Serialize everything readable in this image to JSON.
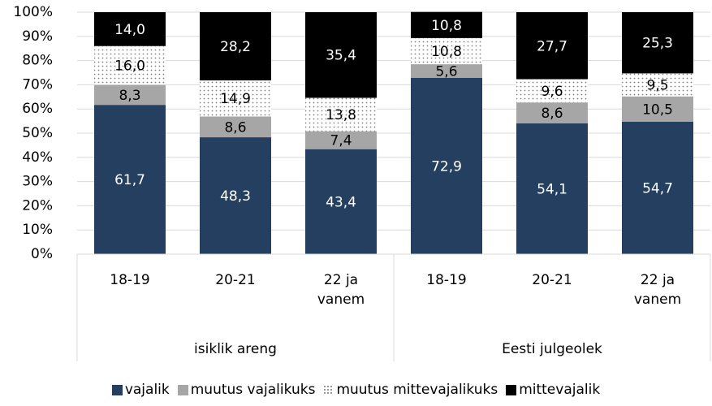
{
  "chart_data": {
    "type": "stacked_bar",
    "categories": [
      "18-19",
      "20-21",
      "22 ja vanem",
      "18-19",
      "20-21",
      "22 ja vanem"
    ],
    "groups": [
      {
        "name": "isiklik areng",
        "size": 3
      },
      {
        "name": "Eesti julgeolek",
        "size": 3
      }
    ],
    "series": [
      {
        "name": "vajalik",
        "color": "#243f60",
        "values": [
          61.7,
          48.3,
          43.4,
          72.9,
          54.1,
          54.7
        ],
        "value_labels": [
          "61,7",
          "48,3",
          "43,4",
          "72,9",
          "54,1",
          "54,7"
        ]
      },
      {
        "name": "muutus vajalikuks",
        "color": "#a6a6a6",
        "values": [
          8.3,
          8.6,
          7.4,
          5.6,
          8.6,
          10.5
        ],
        "value_labels": [
          "8,3",
          "8,6",
          "7,4",
          "5,6",
          "8,6",
          "10,5"
        ]
      },
      {
        "name": "muutus mittevajalikuks",
        "color": "#7f7f7f",
        "pattern": "dotted",
        "values": [
          16.0,
          14.9,
          13.8,
          10.8,
          9.6,
          9.5
        ],
        "value_labels": [
          "16,0",
          "14,9",
          "13,8",
          "10,8",
          "9,6",
          "9,5"
        ]
      },
      {
        "name": "mittevajalik",
        "color": "#000000",
        "values": [
          14.0,
          28.2,
          35.4,
          10.8,
          27.7,
          25.3
        ],
        "value_labels": [
          "14,0",
          "28,2",
          "35,4",
          "10,8",
          "27,7",
          "25,3"
        ]
      }
    ],
    "ylim": [
      0,
      100
    ],
    "yticks": [
      {
        "value": 0,
        "label": "0%"
      },
      {
        "value": 10,
        "label": "10%"
      },
      {
        "value": 20,
        "label": "20%"
      },
      {
        "value": 30,
        "label": "30%"
      },
      {
        "value": 40,
        "label": "40%"
      },
      {
        "value": 50,
        "label": "50%"
      },
      {
        "value": 60,
        "label": "60%"
      },
      {
        "value": 70,
        "label": "70%"
      },
      {
        "value": 80,
        "label": "80%"
      },
      {
        "value": 90,
        "label": "90%"
      },
      {
        "value": 100,
        "label": "100%"
      }
    ],
    "legend": "bottom"
  }
}
